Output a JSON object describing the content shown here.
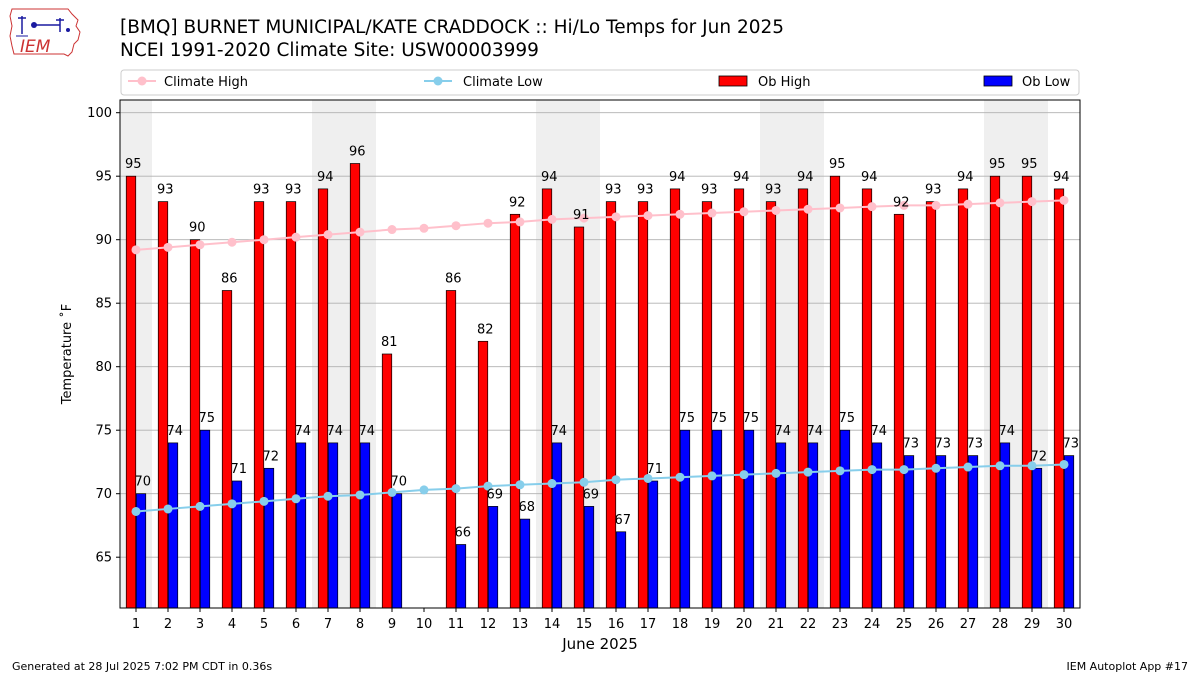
{
  "header": {
    "title": "[BMQ] BURNET MUNICIPAL/KATE CRADDOCK :: Hi/Lo Temps for Jun 2025",
    "subtitle": "NCEI 1991-2020 Climate Site: USW00003999"
  },
  "logo": {
    "text": "IEM",
    "icon": "iem-iowa-logo"
  },
  "footer": {
    "generated": "Generated at 28 Jul 2025 7:02 PM CDT in 0.36s",
    "app": "IEM Autoplot App #17"
  },
  "colors": {
    "ob_high": "#ff0000",
    "ob_low": "#0000ff",
    "climate_high": "#ffc0cb",
    "climate_low": "#87ceeb",
    "weekend_shade": "#efefef",
    "grid": "#b0b0b0"
  },
  "chart_data": {
    "type": "bar",
    "xlabel": "June 2025",
    "ylabel": "Temperature ˚F",
    "ylim": [
      61,
      101
    ],
    "yticks": [
      65,
      70,
      75,
      80,
      85,
      90,
      95,
      100
    ],
    "grid": "horizontal",
    "legend_placement": "top",
    "categories": [
      "1",
      "2",
      "3",
      "4",
      "5",
      "6",
      "7",
      "8",
      "9",
      "10",
      "11",
      "12",
      "13",
      "14",
      "15",
      "16",
      "17",
      "18",
      "19",
      "20",
      "21",
      "22",
      "23",
      "24",
      "25",
      "26",
      "27",
      "28",
      "29",
      "30"
    ],
    "shaded_days": [
      1,
      7,
      8,
      14,
      15,
      21,
      22,
      28,
      29
    ],
    "series": [
      {
        "name": "Ob High",
        "kind": "bar",
        "values": [
          95,
          93,
          90,
          86,
          93,
          93,
          94,
          96,
          81,
          null,
          86,
          82,
          92,
          94,
          91,
          93,
          93,
          94,
          93,
          94,
          93,
          94,
          95,
          94,
          92,
          93,
          94,
          95,
          95,
          94
        ]
      },
      {
        "name": "Ob Low",
        "kind": "bar",
        "values": [
          70,
          74,
          75,
          71,
          72,
          74,
          74,
          74,
          70,
          null,
          66,
          69,
          68,
          74,
          69,
          67,
          71,
          75,
          75,
          75,
          74,
          74,
          75,
          74,
          73,
          73,
          73,
          74,
          72,
          73
        ]
      },
      {
        "name": "Climate High",
        "kind": "line",
        "values": [
          89.2,
          89.4,
          89.6,
          89.8,
          90.0,
          90.2,
          90.4,
          90.6,
          90.8,
          90.9,
          91.1,
          91.3,
          91.4,
          91.6,
          91.7,
          91.8,
          91.9,
          92.0,
          92.1,
          92.2,
          92.3,
          92.4,
          92.5,
          92.6,
          92.7,
          92.7,
          92.8,
          92.9,
          93.0,
          93.1
        ]
      },
      {
        "name": "Climate Low",
        "kind": "line",
        "values": [
          68.6,
          68.8,
          69.0,
          69.2,
          69.4,
          69.6,
          69.8,
          69.9,
          70.1,
          70.3,
          70.4,
          70.6,
          70.7,
          70.8,
          70.9,
          71.1,
          71.2,
          71.3,
          71.4,
          71.5,
          71.6,
          71.7,
          71.8,
          71.9,
          71.9,
          72.0,
          72.1,
          72.2,
          72.2,
          72.3
        ]
      }
    ]
  }
}
